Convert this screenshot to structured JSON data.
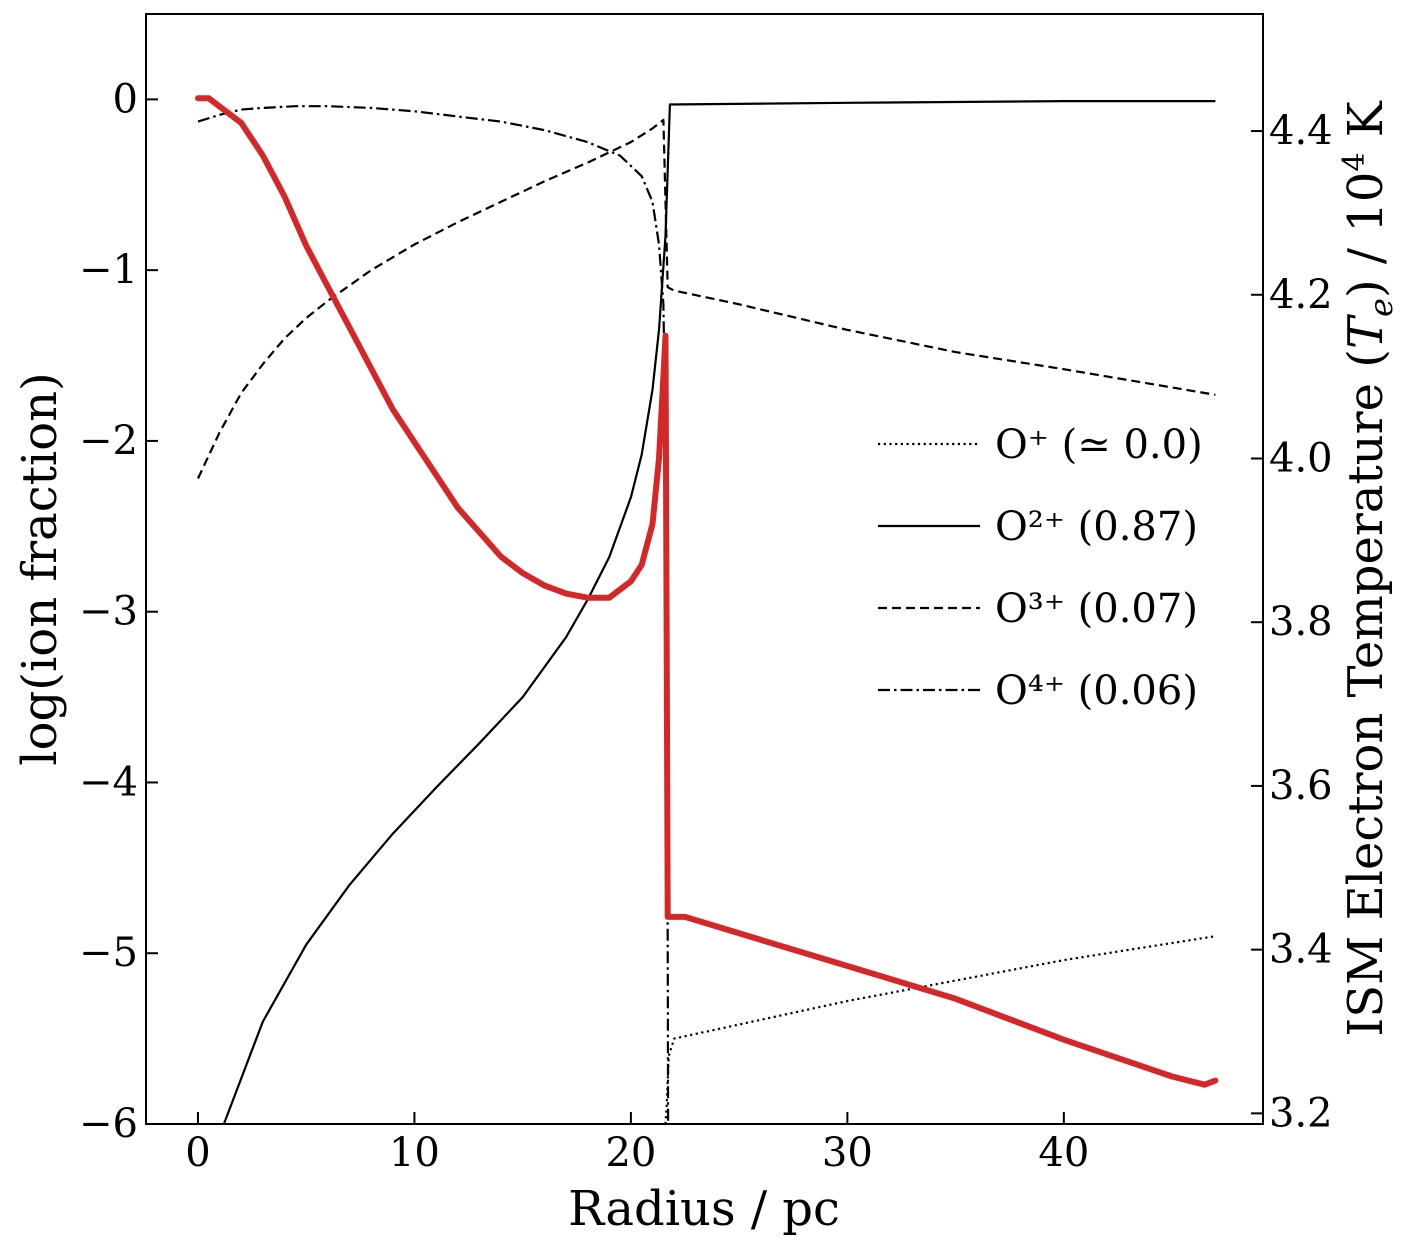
{
  "chart_data": {
    "type": "line",
    "xlabel": "Radius / pc",
    "ylabel": "log(ion fraction)",
    "y2label": "ISM Electron Temperature (T_e) / 10^4 K",
    "xlim": [
      -2.4,
      49.2
    ],
    "ylim": [
      -6.0,
      0.5
    ],
    "y2lim": [
      3.187,
      4.543
    ],
    "xticks": [
      0,
      10,
      20,
      30,
      40
    ],
    "xtick_labels": [
      "0",
      "10",
      "20",
      "30",
      "40"
    ],
    "yticks": [
      0,
      -1,
      -2,
      -3,
      -4,
      -5,
      -6
    ],
    "ytick_labels": [
      "0",
      "−1",
      "−2",
      "−3",
      "−4",
      "−5",
      "−6"
    ],
    "y2ticks": [
      4.4,
      4.2,
      4.0,
      3.8,
      3.6,
      3.4,
      3.2
    ],
    "y2tick_labels": [
      "4.4",
      "4.2",
      "4.0",
      "3.8",
      "3.6",
      "3.4",
      "3.2"
    ],
    "legend_position": "center-right",
    "series": [
      {
        "name": "O⁺ (≃ 0.0)",
        "axis": "left",
        "style": "dotted",
        "color": "#000000",
        "x": [
          21.6,
          21.65,
          21.75,
          22.0,
          30,
          40,
          47
        ],
        "y": [
          -6.0,
          -5.9,
          -5.6,
          -5.5,
          -5.28,
          -5.04,
          -4.9
        ]
      },
      {
        "name": "O²⁺ (0.87)",
        "axis": "left",
        "style": "solid",
        "color": "#000000",
        "x": [
          1.2,
          3,
          5,
          7,
          9,
          11,
          13,
          15,
          17,
          18,
          19,
          20,
          20.5,
          21,
          21.3,
          21.6,
          21.8,
          30,
          40,
          47
        ],
        "y": [
          -6.0,
          -5.4,
          -4.95,
          -4.6,
          -4.3,
          -4.03,
          -3.77,
          -3.5,
          -3.15,
          -2.93,
          -2.68,
          -2.33,
          -2.08,
          -1.7,
          -1.35,
          -0.8,
          -0.03,
          -0.02,
          -0.01,
          -0.01
        ]
      },
      {
        "name": "O³⁺ (0.07)",
        "axis": "left",
        "style": "dashed",
        "color": "#000000",
        "x": [
          0,
          1,
          2,
          3,
          4,
          5,
          6,
          8,
          10,
          12,
          14,
          16,
          18,
          20,
          21,
          21.5,
          21.7,
          22,
          25,
          30,
          35,
          40,
          47
        ],
        "y": [
          -2.22,
          -1.95,
          -1.72,
          -1.55,
          -1.4,
          -1.28,
          -1.18,
          -1.0,
          -0.85,
          -0.72,
          -0.6,
          -0.48,
          -0.37,
          -0.25,
          -0.17,
          -0.12,
          -1.1,
          -1.12,
          -1.2,
          -1.35,
          -1.48,
          -1.58,
          -1.73
        ]
      },
      {
        "name": "O⁴⁺ (0.06)",
        "axis": "left",
        "style": "dashdot",
        "color": "#000000",
        "x": [
          0,
          1,
          2,
          3,
          4.5,
          6,
          8,
          10,
          12,
          14,
          16,
          18,
          19.5,
          20.5,
          21,
          21.3,
          21.5,
          21.6,
          21.65,
          21.7,
          21.72
        ],
        "y": [
          -0.13,
          -0.09,
          -0.06,
          -0.05,
          -0.04,
          -0.04,
          -0.05,
          -0.07,
          -0.1,
          -0.13,
          -0.18,
          -0.25,
          -0.33,
          -0.45,
          -0.6,
          -0.85,
          -1.2,
          -2.0,
          -3.5,
          -4.9,
          -6.0
        ]
      },
      {
        "name": "",
        "axis": "right",
        "style": "solid-thick",
        "color": "#d62728",
        "x": [
          0,
          0.5,
          1,
          1.5,
          2,
          3,
          4,
          5,
          6,
          7,
          8,
          9,
          10,
          11,
          12,
          13,
          14,
          15,
          16,
          17,
          18,
          19,
          20,
          20.5,
          21,
          21.3,
          21.5,
          21.6,
          21.65,
          21.7,
          22,
          22.5,
          25,
          30,
          35,
          40,
          45,
          46.5,
          47
        ],
        "y": [
          4.44,
          4.44,
          4.43,
          4.42,
          4.41,
          4.37,
          4.32,
          4.26,
          4.21,
          4.16,
          4.11,
          4.06,
          4.02,
          3.98,
          3.94,
          3.91,
          3.88,
          3.86,
          3.845,
          3.835,
          3.83,
          3.83,
          3.85,
          3.87,
          3.92,
          4.0,
          4.1,
          4.15,
          3.8,
          3.44,
          3.44,
          3.44,
          3.42,
          3.38,
          3.34,
          3.29,
          3.245,
          3.235,
          3.24
        ]
      }
    ]
  }
}
